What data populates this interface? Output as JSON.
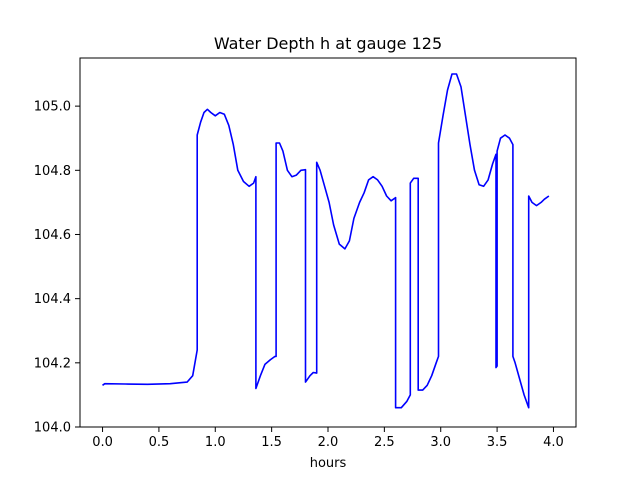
{
  "chart_data": {
    "type": "line",
    "title": "Water Depth h at gauge 125",
    "xlabel": "hours",
    "ylabel": "",
    "xlim": [
      -0.2,
      4.2
    ],
    "ylim": [
      104.0,
      105.15
    ],
    "xticks": [
      0.0,
      0.5,
      1.0,
      1.5,
      2.0,
      2.5,
      3.0,
      3.5,
      4.0
    ],
    "xtick_labels": [
      "0.0",
      "0.5",
      "1.0",
      "1.5",
      "2.0",
      "2.5",
      "3.0",
      "3.5",
      "4.0"
    ],
    "yticks": [
      104.0,
      104.2,
      104.4,
      104.6,
      104.8,
      105.0
    ],
    "ytick_labels": [
      "104.0",
      "104.2",
      "104.4",
      "104.6",
      "104.8",
      "105.0"
    ],
    "grid": false,
    "legend": "none",
    "series": [
      {
        "color": "#0000ff",
        "points": [
          [
            0.0,
            104.13
          ],
          [
            0.02,
            104.135
          ],
          [
            0.2,
            104.134
          ],
          [
            0.4,
            104.133
          ],
          [
            0.6,
            104.135
          ],
          [
            0.75,
            104.14
          ],
          [
            0.8,
            104.16
          ],
          [
            0.84,
            104.24
          ],
          [
            0.84,
            104.91
          ],
          [
            0.87,
            104.95
          ],
          [
            0.9,
            104.98
          ],
          [
            0.93,
            104.99
          ],
          [
            0.96,
            104.98
          ],
          [
            1.0,
            104.97
          ],
          [
            1.04,
            104.98
          ],
          [
            1.08,
            104.975
          ],
          [
            1.12,
            104.94
          ],
          [
            1.16,
            104.88
          ],
          [
            1.2,
            104.8
          ],
          [
            1.25,
            104.765
          ],
          [
            1.3,
            104.75
          ],
          [
            1.34,
            104.76
          ],
          [
            1.36,
            104.78
          ],
          [
            1.36,
            104.12
          ],
          [
            1.4,
            104.16
          ],
          [
            1.44,
            104.195
          ],
          [
            1.49,
            104.21
          ],
          [
            1.53,
            104.22
          ],
          [
            1.54,
            104.22
          ],
          [
            1.54,
            104.885
          ],
          [
            1.57,
            104.885
          ],
          [
            1.6,
            104.86
          ],
          [
            1.64,
            104.8
          ],
          [
            1.68,
            104.78
          ],
          [
            1.72,
            104.785
          ],
          [
            1.76,
            104.8
          ],
          [
            1.8,
            104.802
          ],
          [
            1.8,
            104.14
          ],
          [
            1.84,
            104.16
          ],
          [
            1.87,
            104.17
          ],
          [
            1.9,
            104.168
          ],
          [
            1.9,
            104.825
          ],
          [
            1.93,
            104.8
          ],
          [
            1.97,
            104.75
          ],
          [
            2.01,
            104.7
          ],
          [
            2.05,
            104.63
          ],
          [
            2.1,
            104.57
          ],
          [
            2.15,
            104.555
          ],
          [
            2.19,
            104.58
          ],
          [
            2.23,
            104.65
          ],
          [
            2.28,
            104.7
          ],
          [
            2.32,
            104.73
          ],
          [
            2.36,
            104.77
          ],
          [
            2.4,
            104.78
          ],
          [
            2.44,
            104.77
          ],
          [
            2.48,
            104.75
          ],
          [
            2.52,
            104.72
          ],
          [
            2.56,
            104.705
          ],
          [
            2.6,
            104.715
          ],
          [
            2.6,
            104.06
          ],
          [
            2.65,
            104.06
          ],
          [
            2.7,
            104.08
          ],
          [
            2.73,
            104.1
          ],
          [
            2.73,
            104.76
          ],
          [
            2.76,
            104.775
          ],
          [
            2.8,
            104.775
          ],
          [
            2.8,
            104.115
          ],
          [
            2.84,
            104.115
          ],
          [
            2.88,
            104.13
          ],
          [
            2.92,
            104.16
          ],
          [
            2.96,
            104.2
          ],
          [
            2.98,
            104.22
          ],
          [
            2.98,
            104.885
          ],
          [
            3.02,
            104.97
          ],
          [
            3.06,
            105.05
          ],
          [
            3.1,
            105.1
          ],
          [
            3.14,
            105.1
          ],
          [
            3.18,
            105.06
          ],
          [
            3.22,
            104.97
          ],
          [
            3.26,
            104.88
          ],
          [
            3.3,
            104.8
          ],
          [
            3.34,
            104.755
          ],
          [
            3.38,
            104.75
          ],
          [
            3.42,
            104.77
          ],
          [
            3.46,
            104.82
          ],
          [
            3.49,
            104.85
          ],
          [
            3.49,
            104.185
          ],
          [
            3.5,
            104.19
          ],
          [
            3.5,
            104.86
          ],
          [
            3.53,
            104.9
          ],
          [
            3.57,
            104.91
          ],
          [
            3.61,
            104.9
          ],
          [
            3.64,
            104.88
          ],
          [
            3.64,
            104.22
          ],
          [
            3.66,
            104.2
          ],
          [
            3.7,
            104.15
          ],
          [
            3.74,
            104.1
          ],
          [
            3.78,
            104.06
          ],
          [
            3.78,
            104.72
          ],
          [
            3.81,
            104.7
          ],
          [
            3.85,
            104.69
          ],
          [
            3.89,
            104.7
          ],
          [
            3.92,
            104.71
          ],
          [
            3.96,
            104.72
          ]
        ]
      }
    ]
  }
}
